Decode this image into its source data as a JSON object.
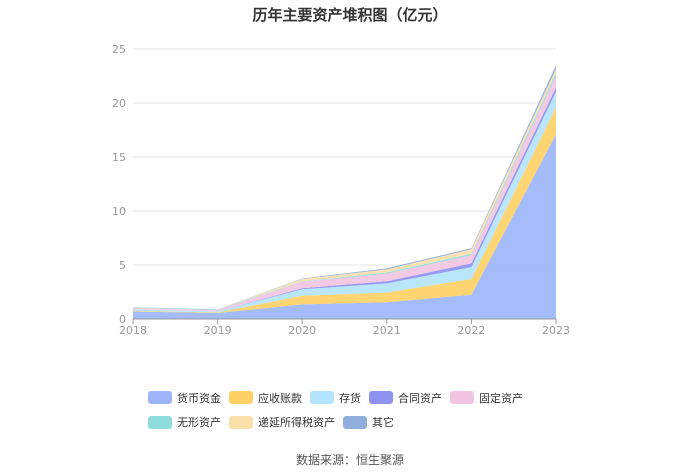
{
  "title": "历年主要资产堆积图（亿元）",
  "source": "数据来源：恒生聚源",
  "chart_data": {
    "type": "area",
    "stacked": true,
    "x": [
      "2018",
      "2019",
      "2020",
      "2021",
      "2022",
      "2023"
    ],
    "ylim": [
      0,
      25
    ],
    "yticks": [
      "0",
      "5",
      "10",
      "15",
      "20",
      "25"
    ],
    "grid": true,
    "legend_position": "bottom",
    "series": [
      {
        "name": "货币资金",
        "color": "#9db6fb",
        "values": [
          0.7,
          0.55,
          1.35,
          1.55,
          2.25,
          17.1
        ]
      },
      {
        "name": "应收账款",
        "color": "#ffd066",
        "values": [
          0.05,
          0.05,
          0.8,
          0.9,
          1.45,
          2.5
        ]
      },
      {
        "name": "存货",
        "color": "#b3e4fb",
        "values": [
          0.15,
          0.1,
          0.6,
          0.85,
          1.1,
          1.45
        ]
      },
      {
        "name": "合同资产",
        "color": "#8f91f0",
        "values": [
          0.0,
          0.0,
          0.1,
          0.2,
          0.35,
          0.4
        ]
      },
      {
        "name": "固定资产",
        "color": "#f2c6e2",
        "values": [
          0.15,
          0.15,
          0.6,
          0.7,
          0.75,
          1.05
        ]
      },
      {
        "name": "无形资产",
        "color": "#90dcdc",
        "values": [
          0.05,
          0.05,
          0.05,
          0.1,
          0.15,
          0.25
        ]
      },
      {
        "name": "递延所得税资产",
        "color": "#fce0ac",
        "values": [
          0.0,
          0.0,
          0.2,
          0.3,
          0.4,
          0.4
        ]
      },
      {
        "name": "其它",
        "color": "#90afdc",
        "values": [
          0.0,
          0.0,
          0.05,
          0.1,
          0.1,
          0.35
        ]
      }
    ]
  }
}
